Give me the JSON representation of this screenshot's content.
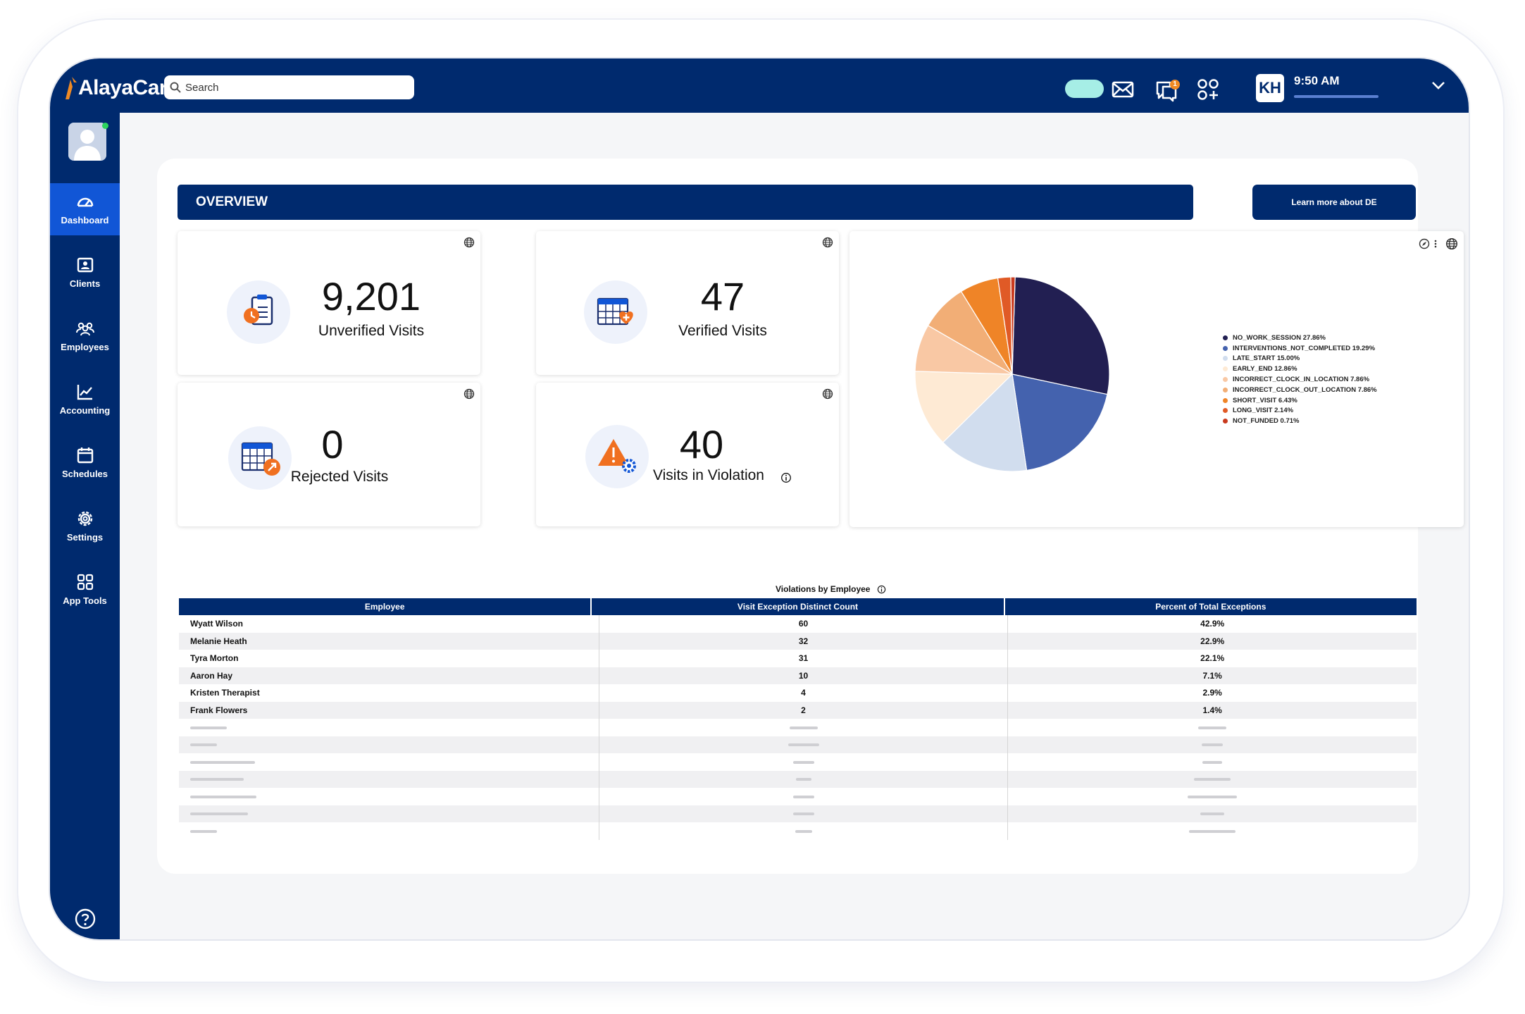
{
  "app": {
    "logo_text": "AlayaCare",
    "search_placeholder": "Search",
    "notification_count": "1",
    "user_initials": "KH",
    "time": "9:50 AM"
  },
  "sidebar": {
    "items": [
      {
        "label": "Dashboard",
        "icon": "gauge-icon",
        "active": true
      },
      {
        "label": "Clients",
        "icon": "id-card-icon",
        "active": false
      },
      {
        "label": "Employees",
        "icon": "people-icon",
        "active": false
      },
      {
        "label": "Accounting",
        "icon": "chart-line-icon",
        "active": false
      },
      {
        "label": "Schedules",
        "icon": "calendar-icon",
        "active": false
      },
      {
        "label": "Settings",
        "icon": "gear-icon",
        "active": false
      },
      {
        "label": "App Tools",
        "icon": "grid-icon",
        "active": false
      }
    ]
  },
  "overview": {
    "title": "OVERVIEW",
    "learn_more": "Learn more about DE"
  },
  "kpis": [
    {
      "value": "9,201",
      "label": "Unverified Visits",
      "icon": "clipboard-clock-icon"
    },
    {
      "value": "47",
      "label": "Verified Visits",
      "icon": "calendar-plus-icon"
    },
    {
      "value": "0",
      "label": "Rejected Visits",
      "icon": "calendar-arrow-icon"
    },
    {
      "value": "40",
      "label": "Visits in Violation",
      "icon": "warning-gear-icon"
    }
  ],
  "chart_data": {
    "type": "pie",
    "slices": [
      {
        "label": "NO_WORK_SESSION",
        "value": 27.86,
        "color": "#221f52"
      },
      {
        "label": "INTERVENTIONS_NOT_COMPLETED",
        "value": 19.29,
        "color": "#4462ae"
      },
      {
        "label": "LATE_START",
        "value": 15.0,
        "color": "#d1ddee"
      },
      {
        "label": "EARLY_END",
        "value": 12.86,
        "color": "#feead4"
      },
      {
        "label": "INCORRECT_CLOCK_IN_LOCATION",
        "value": 7.86,
        "color": "#f9c8a4"
      },
      {
        "label": "INCORRECT_CLOCK_OUT_LOCATION",
        "value": 7.86,
        "color": "#f2ae76"
      },
      {
        "label": "SHORT_VISIT",
        "value": 6.43,
        "color": "#ef8427"
      },
      {
        "label": "LONG_VISIT",
        "value": 2.14,
        "color": "#e05a26"
      },
      {
        "label": "NOT_FUNDED",
        "value": 0.71,
        "color": "#c93a1e"
      }
    ],
    "legend_labels": [
      "NO_WORK_SESSION 27.86%",
      "INTERVENTIONS_NOT_COMPLETED 19.29%",
      "LATE_START 15.00%",
      "EARLY_END 12.86%",
      "INCORRECT_CLOCK_IN_LOCATION 7.86%",
      "INCORRECT_CLOCK_OUT_LOCATION 7.86%",
      "SHORT_VISIT 6.43%",
      "LONG_VISIT 2.14%",
      "NOT_FUNDED 0.71%"
    ],
    "legend_position": "right"
  },
  "table": {
    "title": "Violations by Employee",
    "columns": [
      "Employee",
      "Visit Exception Distinct Count",
      "Percent of Total Exceptions"
    ],
    "rows": [
      [
        "Wyatt Wilson",
        "60",
        "42.9%"
      ],
      [
        "Melanie Heath",
        "32",
        "22.9%"
      ],
      [
        "Tyra Morton",
        "31",
        "22.1%"
      ],
      [
        "Aaron Hay",
        "10",
        "7.1%"
      ],
      [
        "Kristen Therapist",
        "4",
        "2.9%"
      ],
      [
        "Frank Flowers",
        "2",
        "1.4%"
      ]
    ],
    "placeholder_row_count": 7
  }
}
